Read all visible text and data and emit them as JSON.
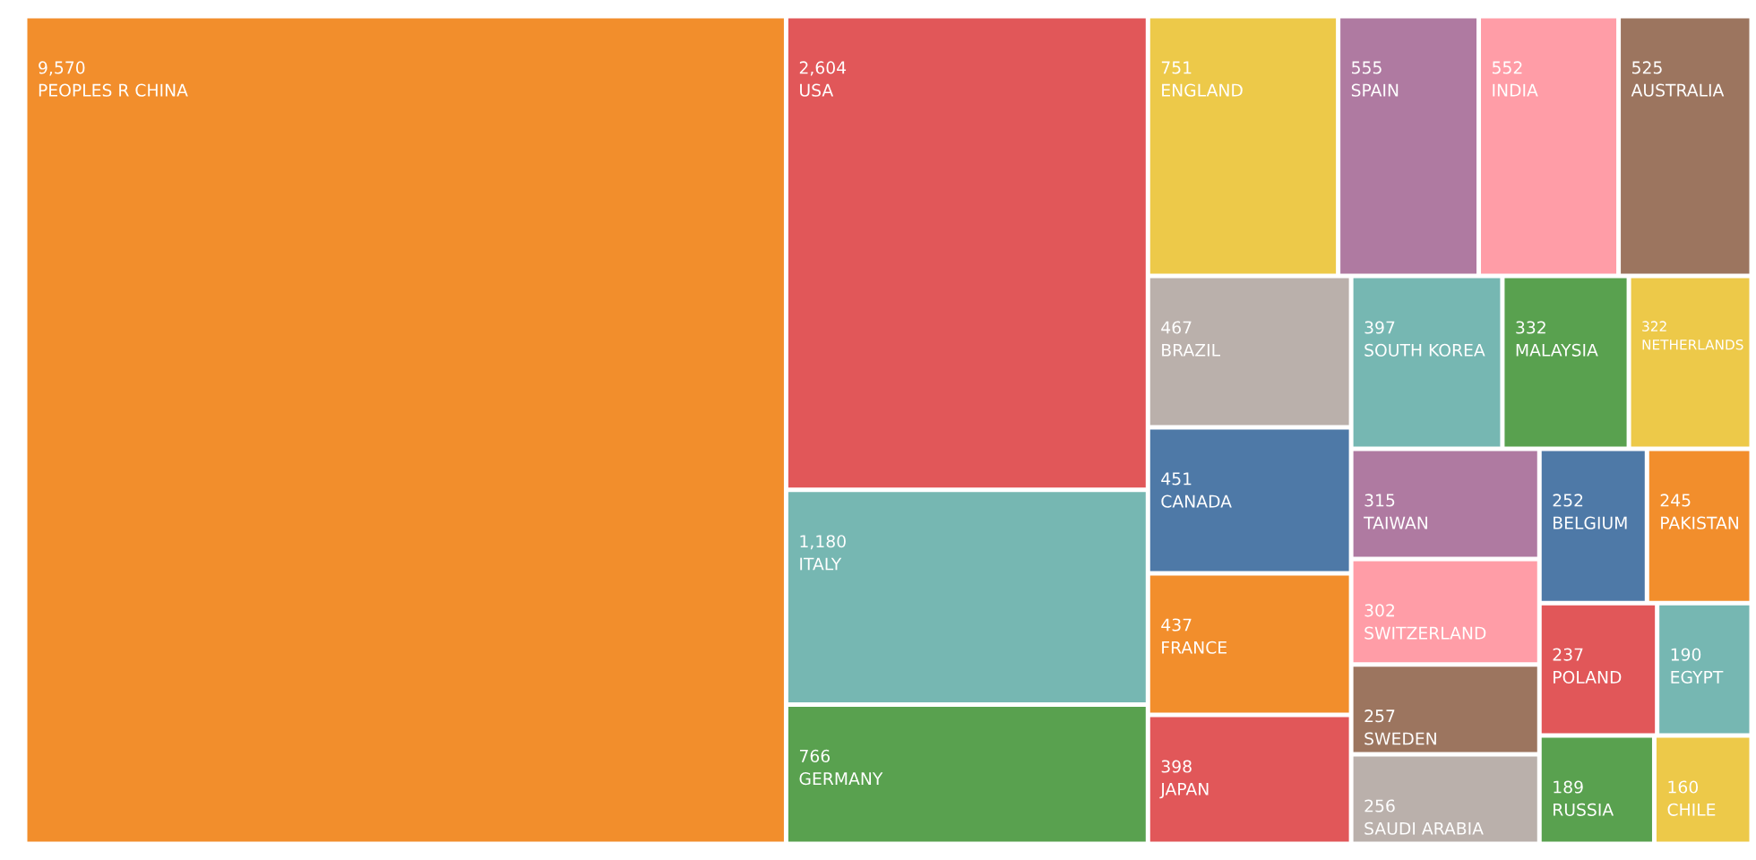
{
  "chart_data": {
    "type": "other",
    "categories": [
      "PEOPLES R CHINA",
      "USA",
      "ITALY",
      "GERMANY",
      "ENGLAND",
      "SPAIN",
      "INDIA",
      "AUSTRALIA",
      "BRAZIL",
      "CANADA",
      "FRANCE",
      "JAPAN",
      "SOUTH KOREA",
      "MALAYSIA",
      "NETHERLANDS",
      "TAIWAN",
      "SWITZERLAND",
      "SWEDEN",
      "SAUDI ARABIA",
      "BELGIUM",
      "PAKISTAN",
      "POLAND",
      "EGYPT",
      "RUSSIA",
      "CHILE"
    ],
    "values": [
      9570,
      2604,
      1180,
      766,
      751,
      555,
      552,
      525,
      467,
      451,
      437,
      398,
      397,
      332,
      322,
      315,
      302,
      257,
      256,
      252,
      245,
      237,
      190,
      189,
      160
    ],
    "value_labels": [
      "9,570",
      "2,604",
      "1,180",
      "766",
      "751",
      "555",
      "552",
      "525",
      "467",
      "451",
      "437",
      "398",
      "397",
      "332",
      "322",
      "315",
      "302",
      "257",
      "256",
      "252",
      "245",
      "237",
      "190",
      "189",
      "160"
    ],
    "colors": [
      "#f28e2c",
      "#e15759",
      "#76b7b2",
      "#59a14f",
      "#edc949",
      "#af7aa1",
      "#ff9da7",
      "#9c755f",
      "#bab0ab",
      "#4e79a7",
      "#f28e2c",
      "#e15759",
      "#76b7b2",
      "#59a14f",
      "#edc949",
      "#af7aa1",
      "#ff9da7",
      "#9c755f",
      "#bab0ab",
      "#4e79a7",
      "#f28e2c",
      "#e15759",
      "#76b7b2",
      "#59a14f",
      "#edc949"
    ]
  }
}
